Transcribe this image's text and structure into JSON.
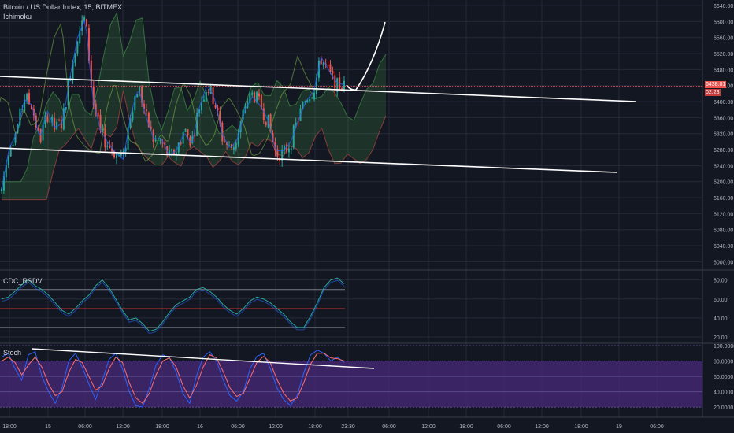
{
  "header": {
    "title": "Bitcoin / US Dollar Index, 15, BITMEX",
    "indicator": "Ichimoku"
  },
  "panes": {
    "rsi_label": "CDC_RSDV",
    "stoch_label": "Stoch"
  },
  "price_tag": {
    "value": "6438.01",
    "countdown": "02:28"
  },
  "colors": {
    "background": "#131722",
    "grid": "#262a38",
    "up": "#26a69a",
    "down": "#ef5350",
    "trendline": "#ffffff",
    "stoch_band": "#4a2a7a",
    "price_tag": "#ef5350"
  },
  "chart_data": [
    {
      "type": "candlestick",
      "title": "Bitcoin / US Dollar Index, 15, BITMEX",
      "indicators": [
        "Ichimoku"
      ],
      "y_ticks": [
        6640,
        6600,
        6560,
        6520,
        6480,
        6440,
        6400,
        6360,
        6320,
        6280,
        6240,
        6200,
        6160,
        6120,
        6080,
        6040,
        6000
      ],
      "ylim": [
        5985,
        6650
      ],
      "last_price": 6438.01,
      "x_ticks": [
        "18:00",
        "15",
        "06:00",
        "12:00",
        "18:00",
        "16",
        "06:00",
        "12:00",
        "18:00",
        "23:30",
        "06:00",
        "12:00",
        "18:00",
        "06:00",
        "12:00",
        "18:00",
        "19",
        "06:00"
      ],
      "close_path": [
        6180,
        6290,
        6330,
        6410,
        6390,
        6300,
        6370,
        6330,
        6350,
        6470,
        6570,
        6610,
        6400,
        6320,
        6290,
        6270,
        6260,
        6380,
        6440,
        6360,
        6300,
        6300,
        6260,
        6280,
        6330,
        6300,
        6390,
        6440,
        6400,
        6310,
        6280,
        6310,
        6390,
        6420,
        6390,
        6350,
        6270,
        6270,
        6300,
        6360,
        6410,
        6430,
        6510,
        6470,
        6440,
        6438.01
      ],
      "grid": true
    },
    {
      "type": "line",
      "title": "CDC_RSDV",
      "y_ticks": [
        80,
        60,
        40,
        20
      ],
      "ylim": [
        15,
        88
      ],
      "levels": [
        70,
        50,
        30
      ],
      "values": [
        60,
        62,
        68,
        75,
        80,
        74,
        70,
        64,
        56,
        48,
        44,
        50,
        58,
        64,
        74,
        80,
        72,
        60,
        48,
        38,
        40,
        34,
        26,
        28,
        36,
        46,
        54,
        58,
        62,
        70,
        72,
        68,
        62,
        54,
        48,
        44,
        50,
        58,
        62,
        60,
        56,
        50,
        44,
        36,
        30,
        30,
        42,
        56,
        72,
        80,
        82,
        76
      ]
    },
    {
      "type": "line",
      "title": "Stoch",
      "y_ticks": [
        100,
        80,
        60,
        40,
        20
      ],
      "ylim": [
        10,
        102
      ],
      "band": [
        20,
        80
      ],
      "k_values": [
        85,
        90,
        70,
        55,
        88,
        92,
        60,
        40,
        25,
        45,
        80,
        90,
        72,
        50,
        30,
        55,
        82,
        90,
        70,
        40,
        22,
        20,
        45,
        75,
        88,
        84,
        65,
        38,
        25,
        60,
        85,
        92,
        80,
        55,
        35,
        28,
        40,
        70,
        86,
        90,
        70,
        45,
        30,
        22,
        35,
        65,
        88,
        94,
        90,
        80,
        85,
        78
      ],
      "d_values": [
        80,
        85,
        78,
        62,
        75,
        85,
        72,
        50,
        35,
        40,
        65,
        82,
        78,
        60,
        42,
        48,
        70,
        85,
        78,
        52,
        32,
        25,
        38,
        62,
        80,
        84,
        72,
        48,
        32,
        48,
        72,
        88,
        84,
        66,
        45,
        34,
        38,
        58,
        78,
        86,
        78,
        56,
        38,
        28,
        32,
        52,
        76,
        90,
        90,
        84,
        83,
        80
      ]
    }
  ]
}
